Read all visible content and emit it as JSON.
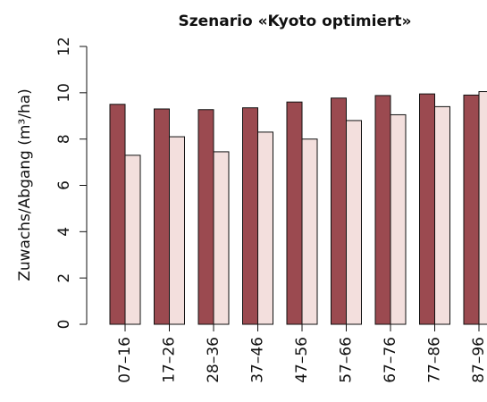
{
  "chart_data": {
    "type": "bar",
    "title": "Szenario «Kyoto optimiert»",
    "y_label": "Zuwachs/Abgang (m³/ha)",
    "categories": [
      "07–16",
      "17–26",
      "28–36",
      "37–46",
      "47–56",
      "57–66",
      "67–76",
      "77–86",
      "87–96"
    ],
    "series": [
      {
        "color": "#9b4a50",
        "values": [
          9.5,
          9.3,
          9.27,
          9.35,
          9.6,
          9.77,
          9.88,
          9.95,
          9.9
        ]
      },
      {
        "color": "#f3dfdd",
        "values": [
          7.3,
          8.1,
          7.45,
          8.3,
          8.0,
          8.8,
          9.05,
          9.4,
          10.05
        ]
      }
    ],
    "ylim": [
      0,
      12
    ],
    "yticks": [
      0,
      2,
      4,
      6,
      8,
      10,
      12
    ],
    "grid": false
  }
}
